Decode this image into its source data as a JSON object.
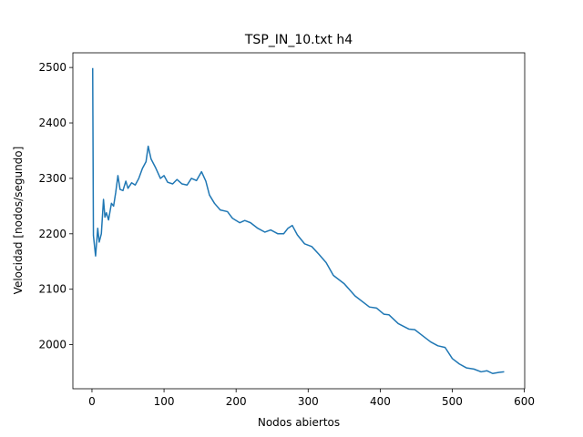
{
  "chart_data": {
    "type": "line",
    "title": "TSP_IN_10.txt h4",
    "x_label": "Nodos abiertos",
    "y_label": "Velocidad [nodos/segundo]",
    "x": [
      1,
      2,
      5,
      8,
      10,
      13,
      16,
      18,
      20,
      23,
      27,
      30,
      33,
      36,
      39,
      43,
      47,
      50,
      55,
      60,
      65,
      70,
      75,
      78,
      82,
      88,
      95,
      100,
      105,
      112,
      118,
      125,
      132,
      138,
      145,
      152,
      158,
      163,
      170,
      178,
      188,
      195,
      205,
      212,
      220,
      230,
      240,
      248,
      258,
      266,
      272,
      278,
      285,
      295,
      305,
      315,
      325,
      335,
      350,
      365,
      385,
      395,
      405,
      412,
      425,
      440,
      448,
      455,
      470,
      480,
      490,
      500,
      510,
      520,
      530,
      540,
      548,
      556,
      565,
      572
    ],
    "series": [
      {
        "name": "h4",
        "color": "#1f77b4",
        "values": [
          2499,
          2197,
          2160,
          2210,
          2185,
          2200,
          2262,
          2230,
          2238,
          2225,
          2255,
          2250,
          2275,
          2305,
          2280,
          2278,
          2295,
          2282,
          2292,
          2288,
          2300,
          2318,
          2330,
          2358,
          2335,
          2320,
          2300,
          2305,
          2293,
          2290,
          2298,
          2290,
          2288,
          2300,
          2296,
          2312,
          2295,
          2270,
          2255,
          2243,
          2240,
          2228,
          2220,
          2224,
          2220,
          2210,
          2203,
          2207,
          2200,
          2200,
          2210,
          2215,
          2198,
          2182,
          2177,
          2163,
          2148,
          2125,
          2110,
          2088,
          2068,
          2066,
          2055,
          2054,
          2038,
          2028,
          2027,
          2020,
          2005,
          1998,
          1995,
          1975,
          1965,
          1958,
          1956,
          1951,
          1953,
          1948,
          1950,
          1951
        ]
      }
    ],
    "xlim": [
      -26.5,
      600.5
    ],
    "xticks": [
      0,
      100,
      200,
      300,
      400,
      500,
      600
    ],
    "ylim": [
      1920.5,
      2526.5
    ],
    "yticks": [
      2000,
      2100,
      2200,
      2300,
      2400,
      2500
    ]
  }
}
